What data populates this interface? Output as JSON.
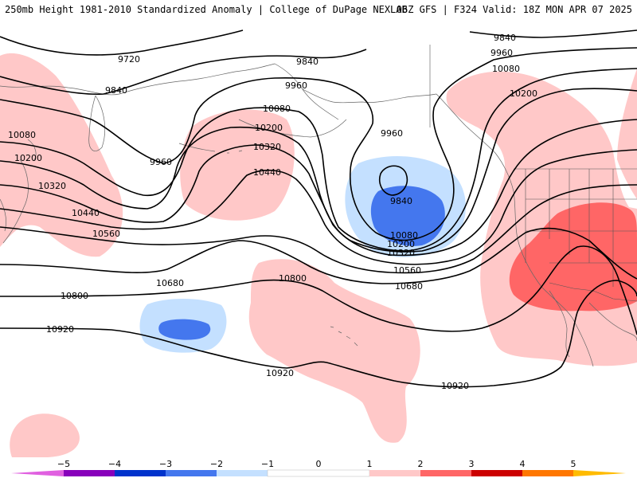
{
  "header": {
    "left_title": "250mb Height 1981-2010 Standardized Anomaly | College of DuPage NEXLAB",
    "right_title": "06Z GFS | F324 Valid: 18Z MON APR 07 2025"
  },
  "colors": {
    "neg5": "#e060e0",
    "neg4": "#8800bb",
    "neg3": "#0033cc",
    "neg2": "#4477ee",
    "neg1": "#c4e0ff",
    "zero": "#ffffff",
    "pos1": "#ffc8c8",
    "pos2": "#ff6666",
    "pos3": "#cc0000",
    "pos4": "#ff7700",
    "pos5": "#ffbb00"
  },
  "contour_labels": [
    {
      "text": "9720"
    },
    {
      "text": "9840"
    },
    {
      "text": "9840"
    },
    {
      "text": "9840"
    },
    {
      "text": "9840"
    },
    {
      "text": "9960"
    },
    {
      "text": "9960"
    },
    {
      "text": "9960"
    },
    {
      "text": "9960"
    },
    {
      "text": "10080"
    },
    {
      "text": "10080"
    },
    {
      "text": "10080"
    },
    {
      "text": "10080"
    },
    {
      "text": "10200"
    },
    {
      "text": "10200"
    },
    {
      "text": "10200"
    },
    {
      "text": "10200"
    },
    {
      "text": "10320"
    },
    {
      "text": "10320"
    },
    {
      "text": "10320"
    },
    {
      "text": "10440"
    },
    {
      "text": "10440"
    },
    {
      "text": "10560"
    },
    {
      "text": "10560"
    },
    {
      "text": "10680"
    },
    {
      "text": "10680"
    },
    {
      "text": "10800"
    },
    {
      "text": "10800"
    },
    {
      "text": "10920"
    },
    {
      "text": "10920"
    },
    {
      "text": "10920"
    }
  ],
  "colorbar": {
    "ticks": [
      "−5",
      "−4",
      "−3",
      "−2",
      "−1",
      "0",
      "1",
      "2",
      "3",
      "4",
      "5"
    ]
  }
}
